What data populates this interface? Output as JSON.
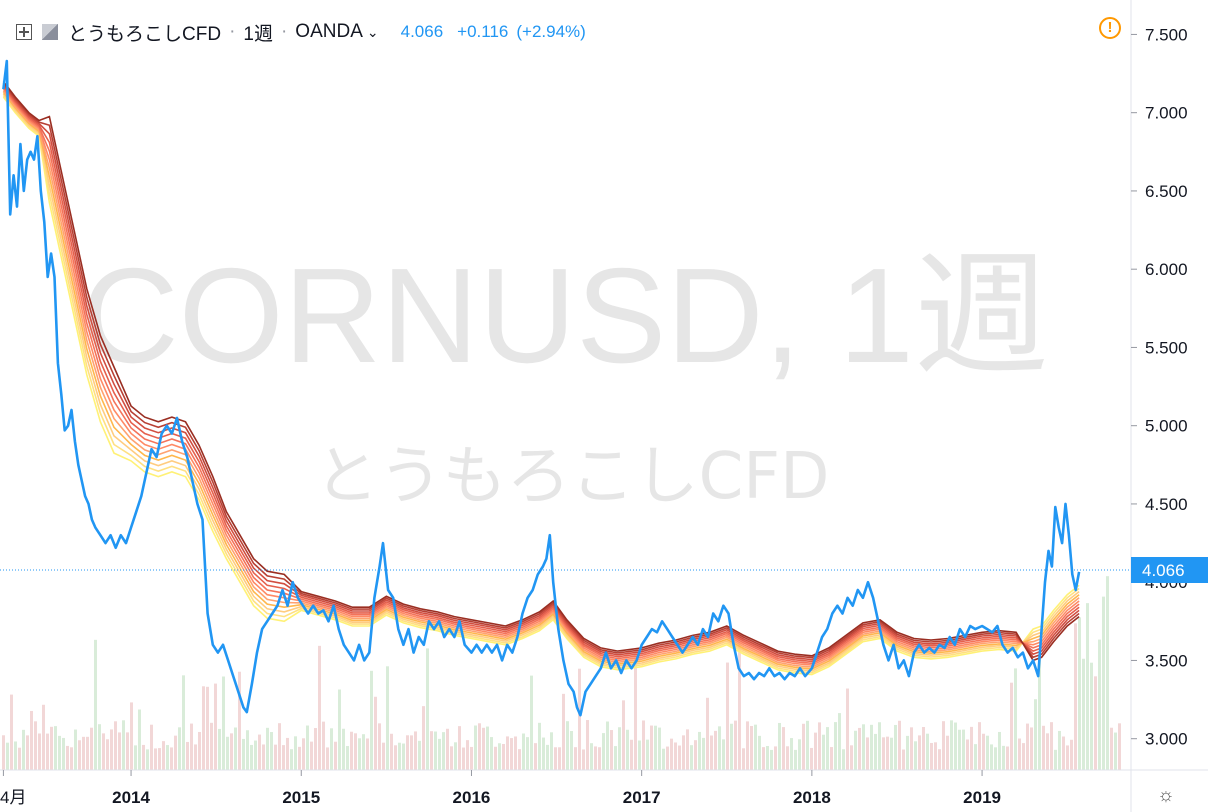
{
  "header": {
    "symbol_name": "とうもろこしCFD",
    "interval": "1週",
    "exchange": "OANDA",
    "last": "4.066",
    "change": "+0.116",
    "change_pct": "(+2.94%)",
    "sep": "·"
  },
  "watermark": {
    "line1": "CORNUSD, 1週",
    "line2": "とうもろこしCFD"
  },
  "price_label": "4.066",
  "colors": {
    "price_line": "#2196f3",
    "volume_up": "#d9ecd9",
    "volume_down": "#f2d7d7",
    "ribbon": [
      "#fff176",
      "#ffe082",
      "#ffcc80",
      "#ffb74d",
      "#ffa270",
      "#ff8a65",
      "#f4735a",
      "#e5604d",
      "#d14e40",
      "#b84034",
      "#9a2e22"
    ]
  },
  "icons": {
    "pair": "plus-box-icon",
    "flag": "flag-icon",
    "alert": "alert-circle-icon",
    "settings": "gear-icon"
  },
  "chart_data": {
    "type": "line",
    "x_tick_labels": [
      "4月",
      "2014",
      "2015",
      "2016",
      "2017",
      "2018",
      "2019"
    ],
    "x_tick_dates": [
      2013.25,
      2014.0,
      2015.0,
      2016.0,
      2017.0,
      2018.0,
      2019.0
    ],
    "y_ticks": [
      "3.000",
      "3.500",
      "4.000",
      "4.500",
      "5.000",
      "5.500",
      "6.000",
      "6.500",
      "7.000",
      "7.500"
    ],
    "ylim": [
      2.8,
      7.72
    ],
    "xlim": [
      2013.23,
      2019.875
    ],
    "last_price": 4.066,
    "price": [
      [
        2013.25,
        7.15
      ],
      [
        2013.27,
        7.33
      ],
      [
        2013.29,
        6.35
      ],
      [
        2013.31,
        6.6
      ],
      [
        2013.33,
        6.4
      ],
      [
        2013.35,
        6.8
      ],
      [
        2013.37,
        6.5
      ],
      [
        2013.39,
        6.7
      ],
      [
        2013.41,
        6.75
      ],
      [
        2013.43,
        6.7
      ],
      [
        2013.45,
        6.85
      ],
      [
        2013.47,
        6.5
      ],
      [
        2013.49,
        6.3
      ],
      [
        2013.51,
        5.95
      ],
      [
        2013.53,
        6.1
      ],
      [
        2013.55,
        5.95
      ],
      [
        2013.57,
        5.4
      ],
      [
        2013.59,
        5.2
      ],
      [
        2013.61,
        4.97
      ],
      [
        2013.63,
        5.0
      ],
      [
        2013.65,
        5.1
      ],
      [
        2013.67,
        4.9
      ],
      [
        2013.69,
        4.75
      ],
      [
        2013.71,
        4.65
      ],
      [
        2013.73,
        4.55
      ],
      [
        2013.75,
        4.5
      ],
      [
        2013.77,
        4.4
      ],
      [
        2013.79,
        4.35
      ],
      [
        2013.82,
        4.3
      ],
      [
        2013.85,
        4.25
      ],
      [
        2013.88,
        4.3
      ],
      [
        2013.91,
        4.22
      ],
      [
        2013.94,
        4.3
      ],
      [
        2013.97,
        4.25
      ],
      [
        2014.0,
        4.35
      ],
      [
        2014.03,
        4.45
      ],
      [
        2014.06,
        4.55
      ],
      [
        2014.09,
        4.7
      ],
      [
        2014.12,
        4.85
      ],
      [
        2014.15,
        4.8
      ],
      [
        2014.18,
        4.95
      ],
      [
        2014.21,
        5.0
      ],
      [
        2014.24,
        4.95
      ],
      [
        2014.27,
        5.05
      ],
      [
        2014.3,
        4.9
      ],
      [
        2014.33,
        4.8
      ],
      [
        2014.36,
        4.65
      ],
      [
        2014.39,
        4.5
      ],
      [
        2014.42,
        4.4
      ],
      [
        2014.45,
        3.8
      ],
      [
        2014.48,
        3.6
      ],
      [
        2014.51,
        3.55
      ],
      [
        2014.54,
        3.6
      ],
      [
        2014.57,
        3.5
      ],
      [
        2014.6,
        3.4
      ],
      [
        2014.63,
        3.3
      ],
      [
        2014.66,
        3.2
      ],
      [
        2014.68,
        3.17
      ],
      [
        2014.71,
        3.35
      ],
      [
        2014.74,
        3.55
      ],
      [
        2014.77,
        3.7
      ],
      [
        2014.8,
        3.75
      ],
      [
        2014.83,
        3.8
      ],
      [
        2014.86,
        3.85
      ],
      [
        2014.89,
        3.95
      ],
      [
        2014.92,
        3.85
      ],
      [
        2014.95,
        4.0
      ],
      [
        2014.98,
        3.9
      ],
      [
        2015.01,
        3.85
      ],
      [
        2015.04,
        3.8
      ],
      [
        2015.07,
        3.85
      ],
      [
        2015.1,
        3.8
      ],
      [
        2015.13,
        3.82
      ],
      [
        2015.16,
        3.75
      ],
      [
        2015.19,
        3.85
      ],
      [
        2015.22,
        3.7
      ],
      [
        2015.25,
        3.6
      ],
      [
        2015.28,
        3.55
      ],
      [
        2015.31,
        3.5
      ],
      [
        2015.34,
        3.6
      ],
      [
        2015.37,
        3.5
      ],
      [
        2015.4,
        3.55
      ],
      [
        2015.43,
        3.9
      ],
      [
        2015.46,
        4.1
      ],
      [
        2015.48,
        4.25
      ],
      [
        2015.51,
        3.95
      ],
      [
        2015.54,
        3.9
      ],
      [
        2015.57,
        3.7
      ],
      [
        2015.6,
        3.6
      ],
      [
        2015.63,
        3.7
      ],
      [
        2015.66,
        3.55
      ],
      [
        2015.69,
        3.65
      ],
      [
        2015.72,
        3.6
      ],
      [
        2015.75,
        3.75
      ],
      [
        2015.78,
        3.7
      ],
      [
        2015.81,
        3.75
      ],
      [
        2015.84,
        3.65
      ],
      [
        2015.87,
        3.7
      ],
      [
        2015.9,
        3.65
      ],
      [
        2015.93,
        3.75
      ],
      [
        2015.96,
        3.6
      ],
      [
        2016.0,
        3.55
      ],
      [
        2016.03,
        3.6
      ],
      [
        2016.06,
        3.55
      ],
      [
        2016.09,
        3.6
      ],
      [
        2016.12,
        3.55
      ],
      [
        2016.15,
        3.6
      ],
      [
        2016.18,
        3.5
      ],
      [
        2016.21,
        3.6
      ],
      [
        2016.24,
        3.55
      ],
      [
        2016.27,
        3.65
      ],
      [
        2016.3,
        3.8
      ],
      [
        2016.33,
        3.9
      ],
      [
        2016.36,
        3.95
      ],
      [
        2016.39,
        4.05
      ],
      [
        2016.42,
        4.1
      ],
      [
        2016.44,
        4.15
      ],
      [
        2016.46,
        4.3
      ],
      [
        2016.48,
        4.0
      ],
      [
        2016.51,
        3.7
      ],
      [
        2016.54,
        3.5
      ],
      [
        2016.57,
        3.35
      ],
      [
        2016.6,
        3.3
      ],
      [
        2016.62,
        3.2
      ],
      [
        2016.64,
        3.15
      ],
      [
        2016.67,
        3.3
      ],
      [
        2016.7,
        3.35
      ],
      [
        2016.73,
        3.4
      ],
      [
        2016.76,
        3.45
      ],
      [
        2016.79,
        3.55
      ],
      [
        2016.82,
        3.45
      ],
      [
        2016.85,
        3.5
      ],
      [
        2016.88,
        3.42
      ],
      [
        2016.91,
        3.5
      ],
      [
        2016.94,
        3.45
      ],
      [
        2016.97,
        3.5
      ],
      [
        2017.0,
        3.6
      ],
      [
        2017.03,
        3.65
      ],
      [
        2017.06,
        3.7
      ],
      [
        2017.09,
        3.68
      ],
      [
        2017.12,
        3.75
      ],
      [
        2017.15,
        3.7
      ],
      [
        2017.18,
        3.65
      ],
      [
        2017.21,
        3.6
      ],
      [
        2017.24,
        3.55
      ],
      [
        2017.27,
        3.6
      ],
      [
        2017.3,
        3.65
      ],
      [
        2017.33,
        3.6
      ],
      [
        2017.36,
        3.7
      ],
      [
        2017.39,
        3.65
      ],
      [
        2017.42,
        3.8
      ],
      [
        2017.45,
        3.75
      ],
      [
        2017.48,
        3.85
      ],
      [
        2017.51,
        3.8
      ],
      [
        2017.54,
        3.6
      ],
      [
        2017.57,
        3.45
      ],
      [
        2017.6,
        3.4
      ],
      [
        2017.63,
        3.42
      ],
      [
        2017.66,
        3.38
      ],
      [
        2017.69,
        3.42
      ],
      [
        2017.72,
        3.4
      ],
      [
        2017.75,
        3.45
      ],
      [
        2017.78,
        3.4
      ],
      [
        2017.81,
        3.42
      ],
      [
        2017.84,
        3.38
      ],
      [
        2017.87,
        3.42
      ],
      [
        2017.9,
        3.4
      ],
      [
        2017.93,
        3.45
      ],
      [
        2017.96,
        3.4
      ],
      [
        2018.0,
        3.45
      ],
      [
        2018.03,
        3.55
      ],
      [
        2018.06,
        3.65
      ],
      [
        2018.09,
        3.7
      ],
      [
        2018.12,
        3.8
      ],
      [
        2018.15,
        3.85
      ],
      [
        2018.18,
        3.8
      ],
      [
        2018.21,
        3.9
      ],
      [
        2018.24,
        3.85
      ],
      [
        2018.27,
        3.95
      ],
      [
        2018.3,
        3.9
      ],
      [
        2018.33,
        4.0
      ],
      [
        2018.36,
        3.9
      ],
      [
        2018.39,
        3.75
      ],
      [
        2018.42,
        3.6
      ],
      [
        2018.45,
        3.5
      ],
      [
        2018.48,
        3.6
      ],
      [
        2018.51,
        3.45
      ],
      [
        2018.54,
        3.5
      ],
      [
        2018.57,
        3.4
      ],
      [
        2018.6,
        3.55
      ],
      [
        2018.63,
        3.6
      ],
      [
        2018.66,
        3.55
      ],
      [
        2018.69,
        3.58
      ],
      [
        2018.72,
        3.55
      ],
      [
        2018.75,
        3.6
      ],
      [
        2018.78,
        3.58
      ],
      [
        2018.81,
        3.65
      ],
      [
        2018.84,
        3.6
      ],
      [
        2018.87,
        3.7
      ],
      [
        2018.9,
        3.65
      ],
      [
        2018.93,
        3.72
      ],
      [
        2018.96,
        3.7
      ],
      [
        2019.0,
        3.72
      ],
      [
        2019.03,
        3.7
      ],
      [
        2019.06,
        3.68
      ],
      [
        2019.09,
        3.72
      ],
      [
        2019.12,
        3.6
      ],
      [
        2019.15,
        3.55
      ],
      [
        2019.18,
        3.58
      ],
      [
        2019.21,
        3.52
      ],
      [
        2019.24,
        3.55
      ],
      [
        2019.27,
        3.45
      ],
      [
        2019.3,
        3.5
      ],
      [
        2019.33,
        3.4
      ],
      [
        2019.35,
        3.7
      ],
      [
        2019.37,
        4.0
      ],
      [
        2019.39,
        4.2
      ],
      [
        2019.41,
        4.1
      ],
      [
        2019.43,
        4.48
      ],
      [
        2019.45,
        4.35
      ],
      [
        2019.47,
        4.25
      ],
      [
        2019.49,
        4.5
      ],
      [
        2019.51,
        4.3
      ],
      [
        2019.53,
        4.05
      ],
      [
        2019.55,
        3.95
      ],
      [
        2019.57,
        4.066
      ]
    ],
    "ribbon_center": [
      [
        2013.25,
        7.15
      ],
      [
        2013.32,
        7.05
      ],
      [
        2013.4,
        6.95
      ],
      [
        2013.46,
        6.9
      ],
      [
        2013.52,
        6.7
      ],
      [
        2013.58,
        6.4
      ],
      [
        2013.66,
        6.0
      ],
      [
        2013.74,
        5.6
      ],
      [
        2013.82,
        5.3
      ],
      [
        2013.9,
        5.1
      ],
      [
        2014.0,
        4.95
      ],
      [
        2014.08,
        4.88
      ],
      [
        2014.16,
        4.85
      ],
      [
        2014.24,
        4.88
      ],
      [
        2014.32,
        4.85
      ],
      [
        2014.4,
        4.7
      ],
      [
        2014.48,
        4.5
      ],
      [
        2014.56,
        4.3
      ],
      [
        2014.64,
        4.15
      ],
      [
        2014.72,
        4.0
      ],
      [
        2014.8,
        3.92
      ],
      [
        2014.9,
        3.9
      ],
      [
        2015.0,
        3.88
      ],
      [
        2015.1,
        3.85
      ],
      [
        2015.2,
        3.82
      ],
      [
        2015.3,
        3.78
      ],
      [
        2015.4,
        3.78
      ],
      [
        2015.5,
        3.85
      ],
      [
        2015.6,
        3.8
      ],
      [
        2015.7,
        3.77
      ],
      [
        2015.8,
        3.75
      ],
      [
        2015.9,
        3.72
      ],
      [
        2016.0,
        3.7
      ],
      [
        2016.1,
        3.68
      ],
      [
        2016.2,
        3.66
      ],
      [
        2016.3,
        3.7
      ],
      [
        2016.4,
        3.75
      ],
      [
        2016.48,
        3.82
      ],
      [
        2016.56,
        3.7
      ],
      [
        2016.66,
        3.58
      ],
      [
        2016.76,
        3.52
      ],
      [
        2016.86,
        3.5
      ],
      [
        2017.0,
        3.52
      ],
      [
        2017.1,
        3.55
      ],
      [
        2017.2,
        3.57
      ],
      [
        2017.3,
        3.6
      ],
      [
        2017.4,
        3.62
      ],
      [
        2017.5,
        3.66
      ],
      [
        2017.6,
        3.6
      ],
      [
        2017.7,
        3.55
      ],
      [
        2017.8,
        3.5
      ],
      [
        2017.9,
        3.48
      ],
      [
        2018.0,
        3.47
      ],
      [
        2018.1,
        3.52
      ],
      [
        2018.2,
        3.6
      ],
      [
        2018.3,
        3.68
      ],
      [
        2018.4,
        3.7
      ],
      [
        2018.5,
        3.62
      ],
      [
        2018.6,
        3.58
      ],
      [
        2018.7,
        3.57
      ],
      [
        2018.8,
        3.58
      ],
      [
        2018.9,
        3.6
      ],
      [
        2019.0,
        3.62
      ],
      [
        2019.1,
        3.63
      ],
      [
        2019.2,
        3.62
      ],
      [
        2019.3,
        3.6
      ],
      [
        2019.35,
        3.62
      ],
      [
        2019.42,
        3.72
      ],
      [
        2019.5,
        3.82
      ],
      [
        2019.57,
        3.88
      ]
    ]
  }
}
